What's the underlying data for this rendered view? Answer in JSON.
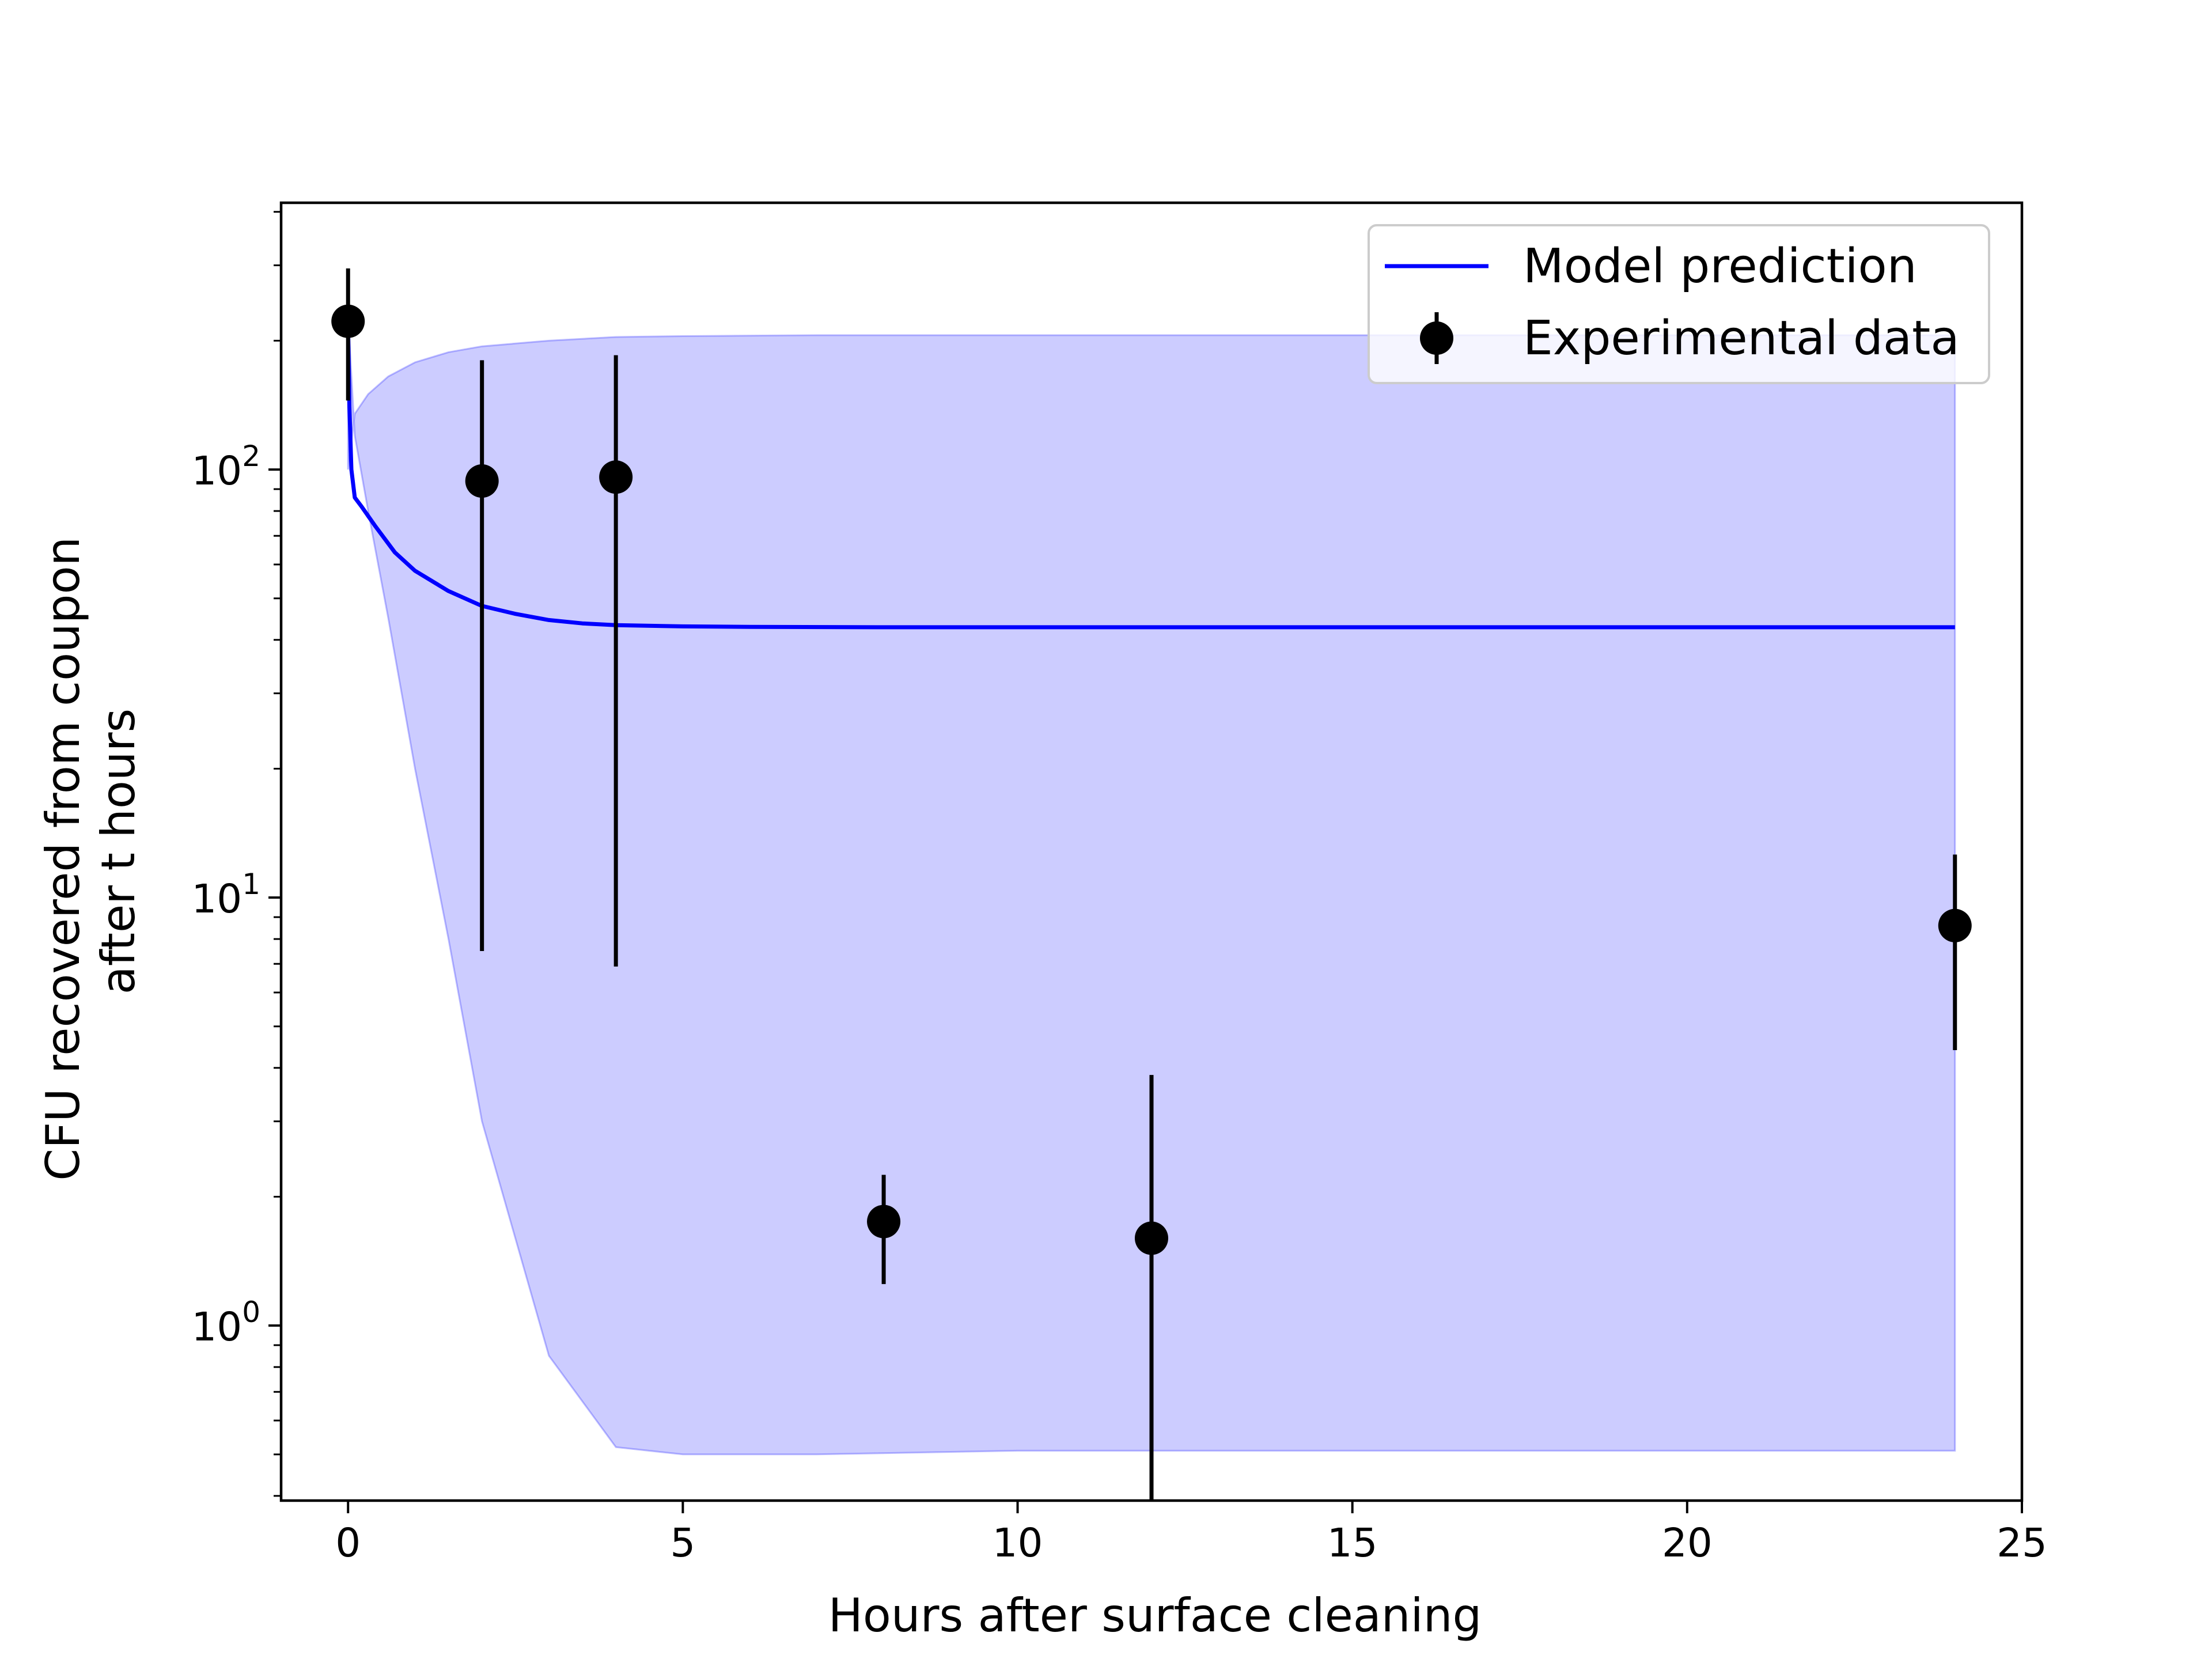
{
  "chart_data": {
    "type": "line",
    "title": "",
    "xlabel": "Hours after surface cleaning",
    "ylabel_lines": [
      "CFU recovered from coupon",
      "after t hours"
    ],
    "x_scale": "linear",
    "y_scale": "log",
    "xlim": [
      -1,
      25
    ],
    "ylim": [
      0.39,
      420
    ],
    "x_ticks": [
      0,
      5,
      10,
      15,
      20,
      25
    ],
    "y_ticks": [
      {
        "value": 1,
        "base": "10",
        "exp": "0"
      },
      {
        "value": 10,
        "base": "10",
        "exp": "1"
      },
      {
        "value": 100,
        "base": "10",
        "exp": "2"
      }
    ],
    "grid": false,
    "legend": {
      "position": "top-right",
      "entries": [
        {
          "label": "Model prediction",
          "kind": "line",
          "color": "#0000ff"
        },
        {
          "label": "Experimental data",
          "kind": "errorbar",
          "color": "#000000"
        }
      ]
    },
    "series": [
      {
        "name": "Model prediction",
        "kind": "line",
        "color": "#0000ff",
        "x": [
          0,
          0.02,
          0.05,
          0.1,
          0.2,
          0.4,
          0.7,
          1.0,
          1.5,
          2.0,
          2.5,
          3.0,
          3.5,
          4.0,
          5.0,
          6.0,
          8.0,
          10.0,
          12.0,
          16.0,
          20.0,
          24.0
        ],
        "y": [
          220,
          140,
          100,
          86,
          82,
          74,
          64,
          58,
          52,
          48,
          46,
          44.5,
          43.7,
          43.3,
          43.0,
          42.9,
          42.8,
          42.8,
          42.8,
          42.8,
          42.8,
          42.8
        ]
      },
      {
        "name": "Experimental data",
        "kind": "errorbar",
        "color": "#000000",
        "x": [
          0,
          2,
          4,
          8,
          12,
          24
        ],
        "y": [
          222,
          94,
          96,
          1.75,
          1.6,
          8.6
        ],
        "y_lower": [
          145,
          7.5,
          6.9,
          1.25,
          0.35,
          4.4
        ],
        "y_upper": [
          295,
          180,
          185,
          2.25,
          3.85,
          12.6
        ]
      }
    ],
    "band": {
      "kind": "fill_between",
      "color": "#0000ff",
      "x": [
        0,
        0.1,
        0.3,
        0.6,
        1.0,
        1.5,
        2.0,
        3.0,
        4.0,
        5.0,
        7.0,
        10.0,
        15.0,
        20.0,
        24.0
      ],
      "y_upper": [
        100,
        135,
        150,
        165,
        178,
        188,
        194,
        200,
        204,
        205,
        206,
        206,
        206,
        206,
        206
      ],
      "y_lower": [
        230,
        120,
        80,
        45,
        20,
        8,
        3.0,
        0.85,
        0.52,
        0.5,
        0.5,
        0.51,
        0.51,
        0.51,
        0.51
      ]
    }
  }
}
